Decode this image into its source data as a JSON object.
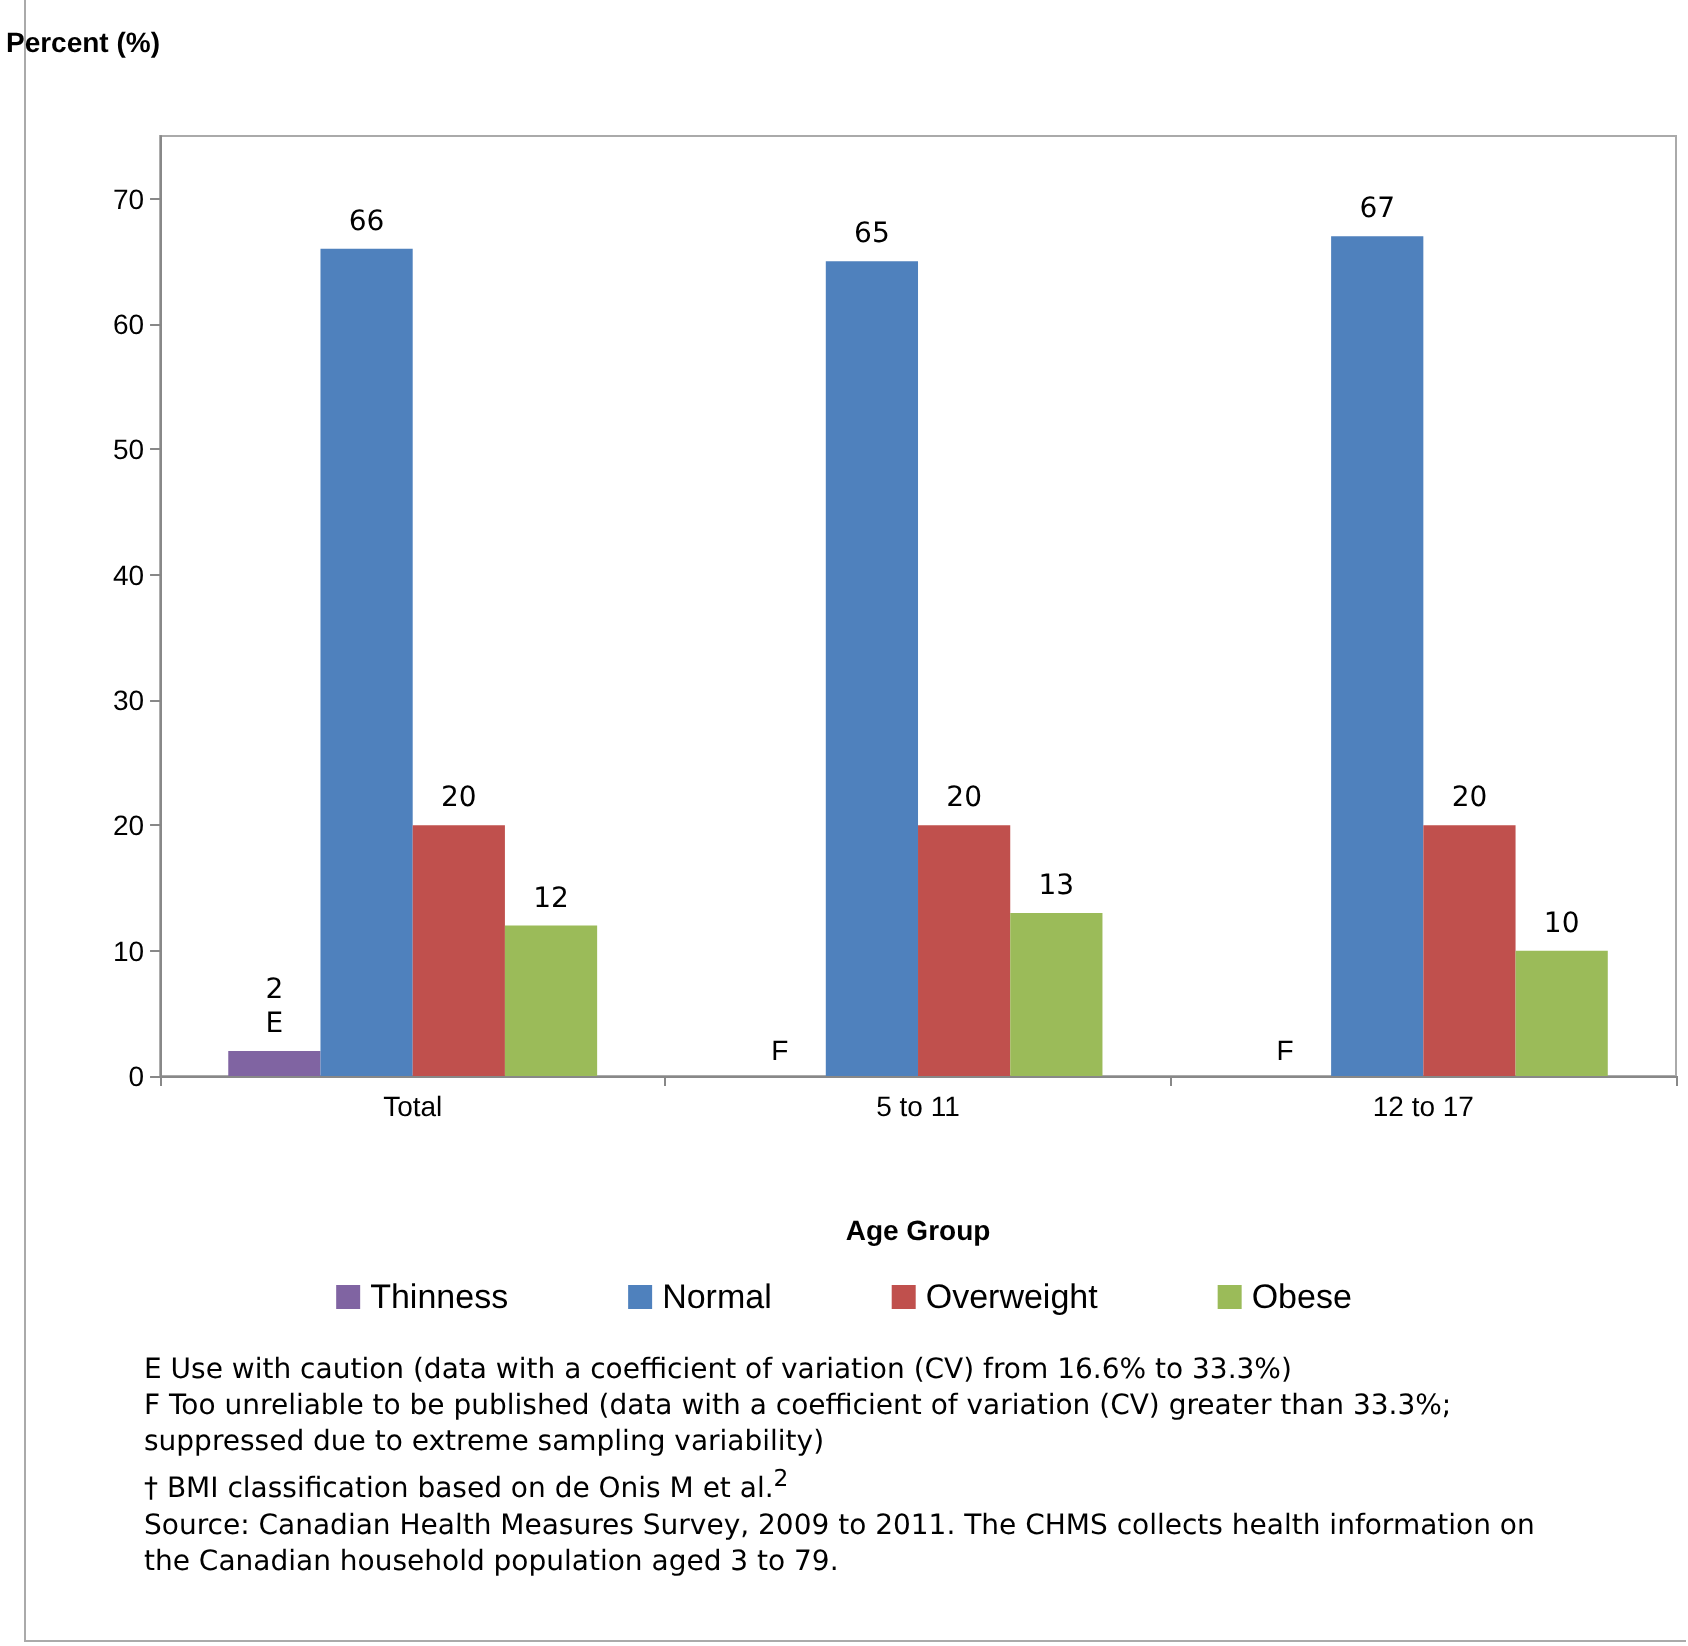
{
  "chart_data": {
    "type": "bar",
    "ylabel": "Percent (%)",
    "xlabel": "Age Group",
    "categories": [
      "Total",
      "5 to 11",
      "12 to 17"
    ],
    "series": [
      {
        "name": "Thinness",
        "color": "#8064a2",
        "values": [
          2,
          null,
          null
        ],
        "value_labels": [
          "2\nE",
          "F",
          "F"
        ]
      },
      {
        "name": "Normal",
        "color": "#4f81bd",
        "values": [
          66,
          65,
          67
        ],
        "value_labels": [
          "66",
          "65",
          "67"
        ]
      },
      {
        "name": "Overweight",
        "color": "#c0504d",
        "values": [
          20,
          20,
          20
        ],
        "value_labels": [
          "20",
          "20",
          "20"
        ]
      },
      {
        "name": "Obese",
        "color": "#9bbb59",
        "values": [
          12,
          13,
          10
        ],
        "value_labels": [
          "12",
          "13",
          "10"
        ]
      }
    ],
    "ylim": [
      0,
      75
    ],
    "yticks": [
      0,
      10,
      20,
      30,
      40,
      50,
      60,
      70
    ],
    "grid": false,
    "legend": "bottom",
    "annotations": [
      "E  Use with caution (data with a coefficient of variation (CV) from 16.6% to 33.3%)",
      "F  Too unreliable to be published (data with a coefficient of variation (CV) greater than 33.3%; suppressed due to extreme sampling variability)",
      "†  BMI classification based on de Onis M et al.$^{2}$",
      "Source: Canadian Health Measures Survey, 2009 to 2011. The CHMS collects health information on the Canadian household population aged 3 to 79."
    ]
  }
}
